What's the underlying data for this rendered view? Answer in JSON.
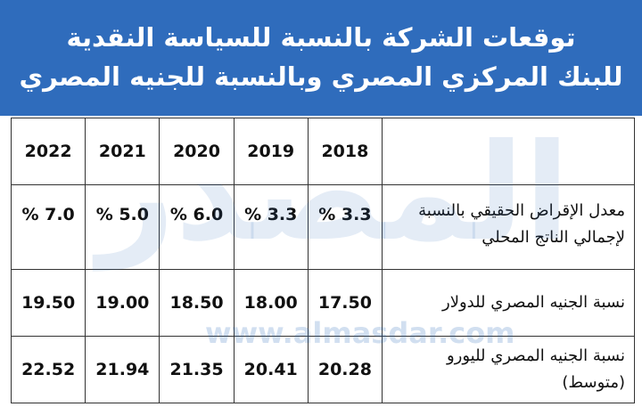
{
  "header": {
    "title": [
      "توقعات الشركة بالنسبة للسياسة النقدية",
      "للبنك المركزي المصري وبالنسبة للجنيه المصري"
    ]
  },
  "watermark": {
    "logo": "المصدر",
    "url": "www.almasdar.com"
  },
  "table": {
    "columns": [
      "2018",
      "2019",
      "2020",
      "2021",
      "2022"
    ],
    "rows": [
      {
        "label": [
          "معدل الإقراض الحقيقي بالنسبة",
          "لإجمالي الناتج المحلي"
        ],
        "values": [
          "% 3.3",
          "% 3.3",
          "% 6.0",
          "% 5.0",
          "% 7.0"
        ]
      },
      {
        "label": [
          "نسبة الجنيه المصري للدولار"
        ],
        "values": [
          "17.50",
          "18.00",
          "18.50",
          "19.00",
          "19.50"
        ]
      },
      {
        "label": [
          "نسبة الجنيه المصري لليورو (متوسط)"
        ],
        "values": [
          "20.28",
          "20.41",
          "21.35",
          "21.94",
          "22.52"
        ]
      }
    ]
  }
}
